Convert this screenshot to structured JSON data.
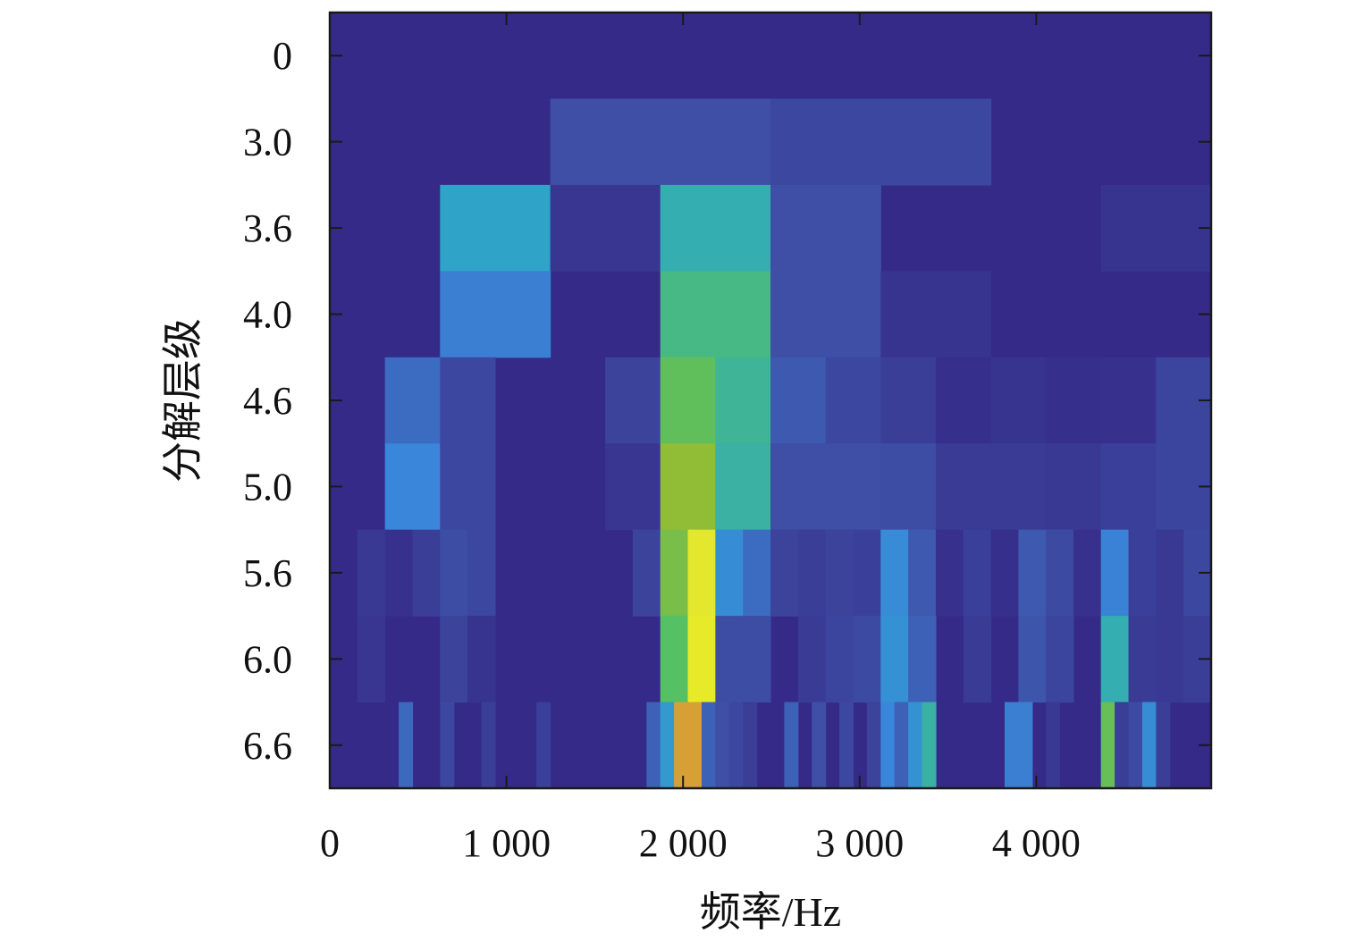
{
  "chart_data": {
    "type": "heatmap",
    "title": "",
    "xlabel": "频率/Hz",
    "ylabel": "分解层级",
    "xlim": [
      0,
      4990
    ],
    "x_ticks": [
      0,
      1000,
      2000,
      3000,
      4000
    ],
    "x_tick_labels": [
      "0",
      "1 000",
      "2 000",
      "3 000",
      "4 000"
    ],
    "y_tick_labels": [
      "0",
      "3.0",
      "3.6",
      "4.0",
      "4.6",
      "5.0",
      "5.6",
      "6.0",
      "6.6"
    ],
    "colormap": "parula",
    "value_range": [
      0,
      1
    ],
    "background_value": 0.0,
    "rows": [
      {
        "level": "0",
        "cells": []
      },
      {
        "level": "3.0",
        "cells": [
          {
            "x0": 1248,
            "x1": 2495,
            "v": 0.15
          },
          {
            "x0": 2495,
            "x1": 3743,
            "v": 0.12
          }
        ]
      },
      {
        "level": "3.6",
        "cells": [
          {
            "x0": 624,
            "x1": 1248,
            "v": 0.42
          },
          {
            "x0": 1248,
            "x1": 1871,
            "v": 0.05
          },
          {
            "x0": 1871,
            "x1": 2495,
            "v": 0.48
          },
          {
            "x0": 2495,
            "x1": 3119,
            "v": 0.15
          },
          {
            "x0": 4366,
            "x1": 4990,
            "v": 0.04
          }
        ]
      },
      {
        "level": "4.0",
        "cells": [
          {
            "x0": 624,
            "x1": 1248,
            "v": 0.28
          },
          {
            "x0": 1871,
            "x1": 2495,
            "v": 0.55
          },
          {
            "x0": 2495,
            "x1": 3119,
            "v": 0.15
          },
          {
            "x0": 3119,
            "x1": 3743,
            "v": 0.04
          }
        ]
      },
      {
        "level": "4.6",
        "cells": [
          {
            "x0": 312,
            "x1": 624,
            "v": 0.23
          },
          {
            "x0": 624,
            "x1": 936,
            "v": 0.12
          },
          {
            "x0": 1559,
            "x1": 1871,
            "v": 0.1
          },
          {
            "x0": 1871,
            "x1": 2183,
            "v": 0.62
          },
          {
            "x0": 2183,
            "x1": 2495,
            "v": 0.52
          },
          {
            "x0": 2495,
            "x1": 2807,
            "v": 0.18
          },
          {
            "x0": 2807,
            "x1": 3119,
            "v": 0.12
          },
          {
            "x0": 3119,
            "x1": 3431,
            "v": 0.08
          },
          {
            "x0": 3431,
            "x1": 3743,
            "v": 0.02
          },
          {
            "x0": 3743,
            "x1": 4054,
            "v": 0.04
          },
          {
            "x0": 4054,
            "x1": 4366,
            "v": 0.02
          },
          {
            "x0": 4366,
            "x1": 4678,
            "v": 0.03
          },
          {
            "x0": 4678,
            "x1": 4990,
            "v": 0.11
          }
        ]
      },
      {
        "level": "5.0",
        "cells": [
          {
            "x0": 312,
            "x1": 624,
            "v": 0.3
          },
          {
            "x0": 624,
            "x1": 936,
            "v": 0.12
          },
          {
            "x0": 1559,
            "x1": 1871,
            "v": 0.05
          },
          {
            "x0": 1871,
            "x1": 2183,
            "v": 0.7
          },
          {
            "x0": 2183,
            "x1": 2495,
            "v": 0.5
          },
          {
            "x0": 2495,
            "x1": 3119,
            "v": 0.15
          },
          {
            "x0": 3119,
            "x1": 3431,
            "v": 0.14
          },
          {
            "x0": 3431,
            "x1": 3743,
            "v": 0.07
          },
          {
            "x0": 3743,
            "x1": 4054,
            "v": 0.07
          },
          {
            "x0": 4054,
            "x1": 4366,
            "v": 0.06
          },
          {
            "x0": 4366,
            "x1": 4678,
            "v": 0.09
          },
          {
            "x0": 4678,
            "x1": 4990,
            "v": 0.11
          }
        ]
      },
      {
        "level": "5.6",
        "cells": [
          {
            "x0": 156,
            "x1": 312,
            "v": 0.06
          },
          {
            "x0": 312,
            "x1": 468,
            "v": 0.03
          },
          {
            "x0": 468,
            "x1": 624,
            "v": 0.08
          },
          {
            "x0": 624,
            "x1": 780,
            "v": 0.14
          },
          {
            "x0": 780,
            "x1": 936,
            "v": 0.12
          },
          {
            "x0": 1715,
            "x1": 1871,
            "v": 0.1
          },
          {
            "x0": 1871,
            "x1": 2027,
            "v": 0.66
          },
          {
            "x0": 2027,
            "x1": 2183,
            "v": 0.88
          },
          {
            "x0": 2183,
            "x1": 2339,
            "v": 0.33
          },
          {
            "x0": 2339,
            "x1": 2495,
            "v": 0.23
          },
          {
            "x0": 2495,
            "x1": 2651,
            "v": 0.1
          },
          {
            "x0": 2651,
            "x1": 2807,
            "v": 0.08
          },
          {
            "x0": 2807,
            "x1": 2963,
            "v": 0.1
          },
          {
            "x0": 2963,
            "x1": 3119,
            "v": 0.09
          },
          {
            "x0": 3119,
            "x1": 3275,
            "v": 0.32
          },
          {
            "x0": 3275,
            "x1": 3431,
            "v": 0.18
          },
          {
            "x0": 3431,
            "x1": 3587,
            "v": 0.03
          },
          {
            "x0": 3587,
            "x1": 3743,
            "v": 0.09
          },
          {
            "x0": 3743,
            "x1": 3899,
            "v": 0.02
          },
          {
            "x0": 3899,
            "x1": 4054,
            "v": 0.18
          },
          {
            "x0": 4054,
            "x1": 4210,
            "v": 0.13
          },
          {
            "x0": 4210,
            "x1": 4366,
            "v": 0.03
          },
          {
            "x0": 4366,
            "x1": 4522,
            "v": 0.29
          },
          {
            "x0": 4522,
            "x1": 4678,
            "v": 0.09
          },
          {
            "x0": 4678,
            "x1": 4834,
            "v": 0.06
          },
          {
            "x0": 4834,
            "x1": 4990,
            "v": 0.12
          }
        ]
      },
      {
        "level": "6.0",
        "cells": [
          {
            "x0": 156,
            "x1": 312,
            "v": 0.05
          },
          {
            "x0": 624,
            "x1": 780,
            "v": 0.1
          },
          {
            "x0": 780,
            "x1": 936,
            "v": 0.04
          },
          {
            "x0": 1871,
            "x1": 2027,
            "v": 0.6
          },
          {
            "x0": 2027,
            "x1": 2183,
            "v": 0.9
          },
          {
            "x0": 2183,
            "x1": 2495,
            "v": 0.14
          },
          {
            "x0": 2651,
            "x1": 2807,
            "v": 0.07
          },
          {
            "x0": 2807,
            "x1": 2963,
            "v": 0.11
          },
          {
            "x0": 2963,
            "x1": 3119,
            "v": 0.13
          },
          {
            "x0": 3119,
            "x1": 3275,
            "v": 0.34
          },
          {
            "x0": 3275,
            "x1": 3431,
            "v": 0.2
          },
          {
            "x0": 3587,
            "x1": 3743,
            "v": 0.07
          },
          {
            "x0": 3899,
            "x1": 4054,
            "v": 0.17
          },
          {
            "x0": 4054,
            "x1": 4210,
            "v": 0.11
          },
          {
            "x0": 4366,
            "x1": 4522,
            "v": 0.48
          },
          {
            "x0": 4522,
            "x1": 4678,
            "v": 0.07
          },
          {
            "x0": 4678,
            "x1": 4834,
            "v": 0.06
          },
          {
            "x0": 4834,
            "x1": 4990,
            "v": 0.08
          }
        ]
      },
      {
        "level": "6.6",
        "cells": [
          {
            "x0": 390,
            "x1": 468,
            "v": 0.22
          },
          {
            "x0": 624,
            "x1": 702,
            "v": 0.12
          },
          {
            "x0": 858,
            "x1": 936,
            "v": 0.08
          },
          {
            "x0": 1170,
            "x1": 1248,
            "v": 0.09
          },
          {
            "x0": 1793,
            "x1": 1871,
            "v": 0.2
          },
          {
            "x0": 1871,
            "x1": 1949,
            "v": 0.38
          },
          {
            "x0": 1949,
            "x1": 2105,
            "v": 0.8
          },
          {
            "x0": 2105,
            "x1": 2183,
            "v": 0.2
          },
          {
            "x0": 2183,
            "x1": 2261,
            "v": 0.15
          },
          {
            "x0": 2261,
            "x1": 2339,
            "v": 0.12
          },
          {
            "x0": 2339,
            "x1": 2417,
            "v": 0.08
          },
          {
            "x0": 2573,
            "x1": 2651,
            "v": 0.2
          },
          {
            "x0": 2729,
            "x1": 2807,
            "v": 0.15
          },
          {
            "x0": 2885,
            "x1": 2963,
            "v": 0.12
          },
          {
            "x0": 3041,
            "x1": 3119,
            "v": 0.1
          },
          {
            "x0": 3119,
            "x1": 3197,
            "v": 0.3
          },
          {
            "x0": 3197,
            "x1": 3275,
            "v": 0.2
          },
          {
            "x0": 3275,
            "x1": 3353,
            "v": 0.35
          },
          {
            "x0": 3353,
            "x1": 3431,
            "v": 0.5
          },
          {
            "x0": 3821,
            "x1": 3977,
            "v": 0.28
          },
          {
            "x0": 4054,
            "x1": 4132,
            "v": 0.06
          },
          {
            "x0": 4366,
            "x1": 4444,
            "v": 0.63
          },
          {
            "x0": 4444,
            "x1": 4522,
            "v": 0.08
          },
          {
            "x0": 4522,
            "x1": 4600,
            "v": 0.13
          },
          {
            "x0": 4600,
            "x1": 4678,
            "v": 0.33
          },
          {
            "x0": 4678,
            "x1": 4756,
            "v": 0.08
          }
        ]
      }
    ]
  }
}
